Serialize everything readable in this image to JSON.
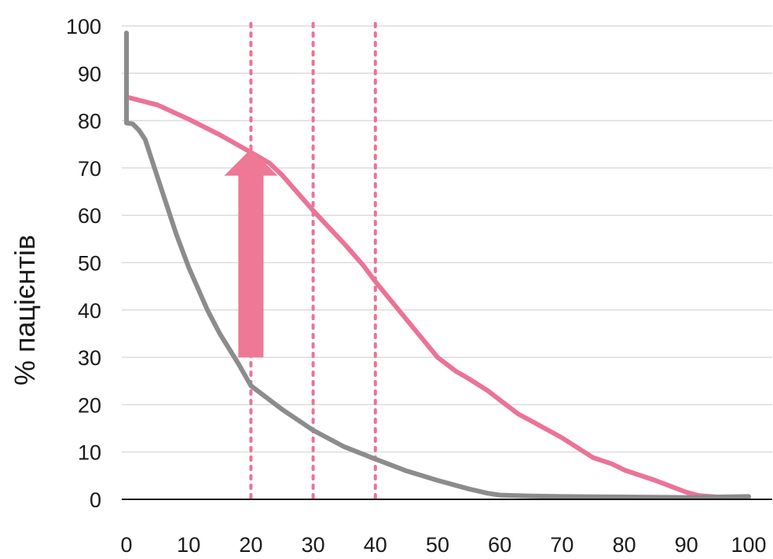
{
  "chart_data": {
    "type": "line",
    "title": "",
    "xlabel": "",
    "ylabel": "% пацієнтів",
    "xlim": [
      0,
      100
    ],
    "ylim": [
      0,
      100
    ],
    "grid": true,
    "x_ticks": [
      "0",
      "10",
      "20",
      "30",
      "40",
      "50",
      "60",
      "70",
      "80",
      "90",
      "100"
    ],
    "y_ticks": [
      "0",
      "10",
      "20",
      "30",
      "40",
      "50",
      "60",
      "70",
      "80",
      "90",
      "100"
    ],
    "reference_lines_x": [
      20,
      30,
      40
    ],
    "annotations": [
      {
        "type": "arrow",
        "x": 20,
        "from_y": 30,
        "to_y": 74,
        "color": "#ee7896"
      }
    ],
    "series": [
      {
        "color": "#eb7396",
        "points": [
          [
            0,
            85
          ],
          [
            5,
            83.3
          ],
          [
            10,
            80.3
          ],
          [
            15,
            77
          ],
          [
            20,
            73.3
          ],
          [
            23,
            71
          ],
          [
            25,
            68.5
          ],
          [
            30,
            61
          ],
          [
            35,
            54
          ],
          [
            38,
            49.5
          ],
          [
            40,
            46
          ],
          [
            45,
            38
          ],
          [
            50,
            30
          ],
          [
            53,
            27
          ],
          [
            55,
            25.5
          ],
          [
            58,
            23
          ],
          [
            60,
            21
          ],
          [
            62,
            19
          ],
          [
            63,
            18
          ],
          [
            65,
            16.6
          ],
          [
            70,
            13
          ],
          [
            75,
            8.8
          ],
          [
            78,
            7.5
          ],
          [
            80,
            6.2
          ],
          [
            82,
            5.3
          ],
          [
            85,
            4
          ],
          [
            87,
            3
          ],
          [
            90,
            1.5
          ],
          [
            92,
            0.8
          ],
          [
            95,
            0.5
          ],
          [
            100,
            0.5
          ]
        ]
      },
      {
        "color": "#8c8c8c",
        "points": [
          [
            0,
            98.5
          ],
          [
            0,
            79.5
          ],
          [
            1,
            79.3
          ],
          [
            2,
            78
          ],
          [
            3,
            76
          ],
          [
            5,
            68
          ],
          [
            8,
            56
          ],
          [
            10,
            49
          ],
          [
            13,
            40
          ],
          [
            15,
            35
          ],
          [
            18,
            28.6
          ],
          [
            20,
            24
          ],
          [
            22,
            22
          ],
          [
            25,
            19
          ],
          [
            30,
            14.6
          ],
          [
            35,
            11.1
          ],
          [
            40,
            8.5
          ],
          [
            45,
            6
          ],
          [
            50,
            4
          ],
          [
            55,
            2.2
          ],
          [
            58,
            1.3
          ],
          [
            60,
            0.9
          ],
          [
            65,
            0.7
          ],
          [
            70,
            0.6
          ],
          [
            80,
            0.5
          ],
          [
            90,
            0.4
          ],
          [
            100,
            0.6
          ]
        ]
      }
    ]
  }
}
